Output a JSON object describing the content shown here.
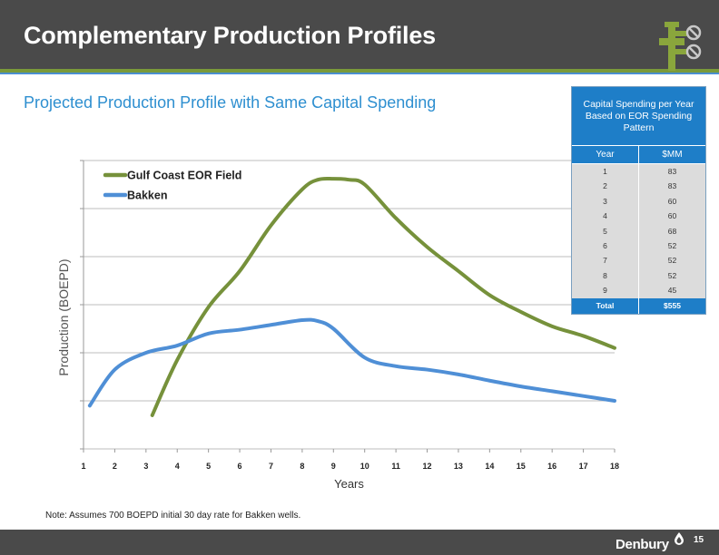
{
  "header": {
    "title": "Complementary Production Profiles"
  },
  "subtitle": "Projected Production Profile with Same Capital Spending",
  "note": "Note:  Assumes 700 BOEPD initial 30 day rate for Bakken wells.",
  "footer": {
    "brand": "Denbury",
    "page_number": "15"
  },
  "colors": {
    "gulf": "#76913b",
    "bakken": "#4f8fd6",
    "accent": "#1e7ec8",
    "header": "#4a4a4a"
  },
  "table": {
    "title": "Capital Spending per Year Based on EOR Spending Pattern",
    "headers": [
      "Year",
      "$MM"
    ],
    "rows": [
      [
        "1",
        "83"
      ],
      [
        "2",
        "83"
      ],
      [
        "3",
        "60"
      ],
      [
        "4",
        "60"
      ],
      [
        "5",
        "68"
      ],
      [
        "6",
        "52"
      ],
      [
        "7",
        "52"
      ],
      [
        "8",
        "52"
      ],
      [
        "9",
        "45"
      ]
    ],
    "total": [
      "Total",
      "$555"
    ]
  },
  "chart_data": {
    "type": "line",
    "xlabel": "Years",
    "ylabel": "Production (BOEPD)",
    "xlim": [
      1,
      18
    ],
    "ylim": [
      0,
      6
    ],
    "x_ticks": [
      1,
      2,
      3,
      4,
      5,
      6,
      7,
      8,
      9,
      10,
      11,
      12,
      13,
      14,
      15,
      16,
      17,
      18
    ],
    "y_gridlines": [
      0,
      1,
      2,
      3,
      4,
      5,
      6
    ],
    "legend_position": "top-left",
    "series": [
      {
        "name": "Gulf Coast EOR Field",
        "color": "#76913b",
        "x": [
          3.2,
          4,
          5,
          6,
          7,
          8,
          8.5,
          9,
          9.5,
          10,
          11,
          12,
          13,
          14,
          15,
          16,
          17,
          18
        ],
        "y": [
          0.7,
          1.85,
          2.95,
          3.7,
          4.65,
          5.4,
          5.6,
          5.62,
          5.6,
          5.5,
          4.8,
          4.2,
          3.7,
          3.2,
          2.85,
          2.55,
          2.35,
          2.1
        ]
      },
      {
        "name": "Bakken",
        "color": "#4f8fd6",
        "x": [
          1.2,
          2,
          3,
          4,
          5,
          6,
          7,
          8,
          8.5,
          9,
          10,
          11,
          12,
          13,
          14,
          15,
          16,
          17,
          18
        ],
        "y": [
          0.9,
          1.65,
          2.0,
          2.15,
          2.4,
          2.48,
          2.58,
          2.68,
          2.66,
          2.5,
          1.9,
          1.72,
          1.65,
          1.55,
          1.42,
          1.3,
          1.2,
          1.1,
          1.0
        ]
      }
    ]
  }
}
